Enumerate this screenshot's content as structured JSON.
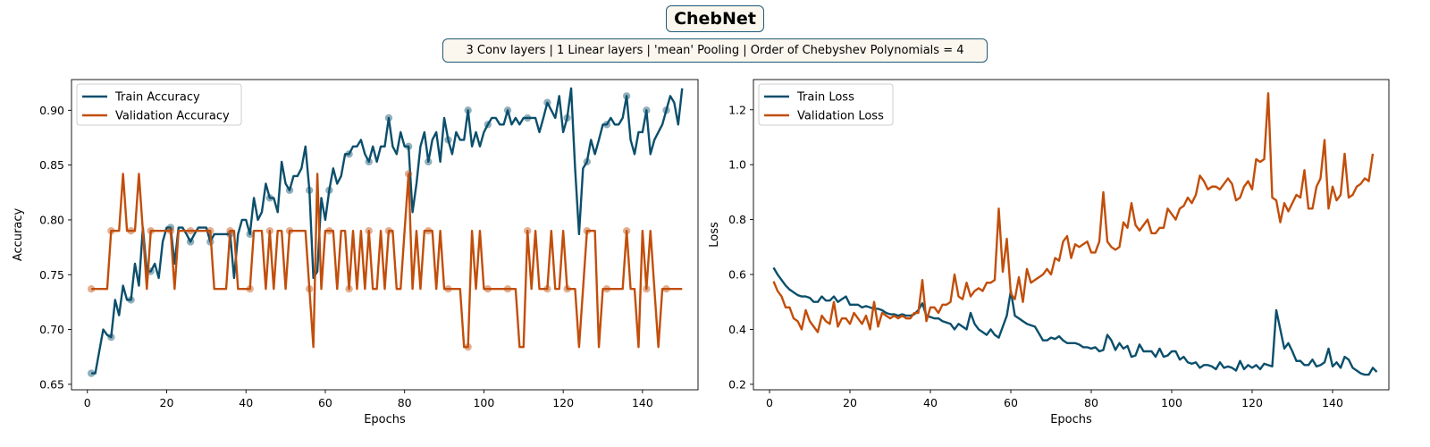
{
  "header": {
    "title": "ChebNet",
    "subtitle": "3 Conv layers | 1 Linear layers | 'mean' Pooling | Order of Chebyshev Polynomials = 4"
  },
  "colors": {
    "train": "#0b4f6c",
    "validation": "#c24e0a"
  },
  "chart_data": [
    {
      "type": "line",
      "xlabel": "Epochs",
      "ylabel": "Accuracy",
      "xlim": [
        -4,
        154
      ],
      "ylim": [
        0.645,
        0.928
      ],
      "xticks": [
        0,
        20,
        40,
        60,
        80,
        100,
        120,
        140
      ],
      "yticks": [
        0.65,
        0.7,
        0.75,
        0.8,
        0.85,
        0.9
      ],
      "ytick_labels": [
        "0.65",
        "0.70",
        "0.75",
        "0.80",
        "0.85",
        "0.90"
      ],
      "legend": "top-left",
      "x_start": 1,
      "marker_every": 5,
      "series": [
        {
          "name": "Train Accuracy",
          "color": "#0b4f6c",
          "values": [
            0.66,
            0.66,
            0.68,
            0.7,
            0.695,
            0.693,
            0.727,
            0.713,
            0.74,
            0.727,
            0.727,
            0.76,
            0.74,
            0.793,
            0.753,
            0.753,
            0.76,
            0.747,
            0.78,
            0.793,
            0.793,
            0.76,
            0.793,
            0.793,
            0.787,
            0.78,
            0.787,
            0.793,
            0.793,
            0.793,
            0.78,
            0.787,
            0.787,
            0.787,
            0.787,
            0.787,
            0.747,
            0.787,
            0.8,
            0.8,
            0.787,
            0.82,
            0.8,
            0.807,
            0.833,
            0.82,
            0.82,
            0.807,
            0.853,
            0.833,
            0.827,
            0.84,
            0.84,
            0.847,
            0.867,
            0.827,
            0.747,
            0.753,
            0.82,
            0.8,
            0.827,
            0.847,
            0.833,
            0.84,
            0.86,
            0.86,
            0.867,
            0.867,
            0.873,
            0.86,
            0.853,
            0.867,
            0.853,
            0.867,
            0.867,
            0.893,
            0.867,
            0.86,
            0.88,
            0.867,
            0.867,
            0.807,
            0.833,
            0.867,
            0.88,
            0.853,
            0.873,
            0.88,
            0.853,
            0.893,
            0.873,
            0.86,
            0.88,
            0.873,
            0.873,
            0.9,
            0.867,
            0.88,
            0.867,
            0.88,
            0.887,
            0.893,
            0.893,
            0.887,
            0.887,
            0.9,
            0.887,
            0.893,
            0.887,
            0.893,
            0.893,
            0.893,
            0.893,
            0.88,
            0.893,
            0.907,
            0.9,
            0.893,
            0.913,
            0.88,
            0.893,
            0.92,
            0.847,
            0.787,
            0.847,
            0.853,
            0.873,
            0.86,
            0.873,
            0.887,
            0.887,
            0.893,
            0.887,
            0.887,
            0.893,
            0.913,
            0.873,
            0.86,
            0.88,
            0.88,
            0.9,
            0.86,
            0.873,
            0.88,
            0.887,
            0.9,
            0.913,
            0.907,
            0.887,
            0.92
          ]
        },
        {
          "name": "Validation Accuracy",
          "color": "#c24e0a",
          "values": [
            0.737,
            0.737,
            0.737,
            0.737,
            0.737,
            0.79,
            0.79,
            0.79,
            0.842,
            0.79,
            0.79,
            0.79,
            0.842,
            0.79,
            0.737,
            0.79,
            0.79,
            0.79,
            0.79,
            0.79,
            0.79,
            0.737,
            0.79,
            0.79,
            0.79,
            0.79,
            0.79,
            0.79,
            0.79,
            0.79,
            0.79,
            0.737,
            0.737,
            0.737,
            0.737,
            0.79,
            0.79,
            0.737,
            0.737,
            0.737,
            0.737,
            0.79,
            0.79,
            0.79,
            0.737,
            0.79,
            0.737,
            0.79,
            0.79,
            0.737,
            0.79,
            0.79,
            0.79,
            0.79,
            0.79,
            0.737,
            0.684,
            0.842,
            0.737,
            0.79,
            0.79,
            0.79,
            0.737,
            0.79,
            0.79,
            0.737,
            0.79,
            0.737,
            0.79,
            0.737,
            0.79,
            0.737,
            0.737,
            0.79,
            0.737,
            0.79,
            0.79,
            0.737,
            0.737,
            0.79,
            0.842,
            0.737,
            0.79,
            0.737,
            0.79,
            0.79,
            0.79,
            0.737,
            0.79,
            0.737,
            0.737,
            0.737,
            0.737,
            0.737,
            0.684,
            0.684,
            0.79,
            0.737,
            0.79,
            0.737,
            0.737,
            0.737,
            0.737,
            0.737,
            0.737,
            0.737,
            0.737,
            0.737,
            0.684,
            0.684,
            0.79,
            0.737,
            0.79,
            0.737,
            0.737,
            0.737,
            0.79,
            0.737,
            0.737,
            0.79,
            0.737,
            0.737,
            0.737,
            0.684,
            0.737,
            0.79,
            0.79,
            0.79,
            0.684,
            0.737,
            0.737,
            0.737,
            0.737,
            0.737,
            0.737,
            0.79,
            0.737,
            0.737,
            0.684,
            0.79,
            0.737,
            0.79,
            0.737,
            0.684,
            0.737,
            0.737,
            0.737,
            0.737,
            0.737,
            0.737
          ]
        }
      ]
    },
    {
      "type": "line",
      "xlabel": "Epochs",
      "ylabel": "Loss",
      "xlim": [
        -4,
        154
      ],
      "ylim": [
        0.18,
        1.31
      ],
      "xticks": [
        0,
        20,
        40,
        60,
        80,
        100,
        120,
        140
      ],
      "yticks": [
        0.2,
        0.4,
        0.6,
        0.8,
        1.0,
        1.2
      ],
      "ytick_labels": [
        "0.2",
        "0.4",
        "0.6",
        "0.8",
        "1.0",
        "1.2"
      ],
      "legend": "top-left",
      "x_start": 1,
      "series": [
        {
          "name": "Train Loss",
          "color": "#0b4f6c",
          "values": [
            0.625,
            0.6,
            0.58,
            0.56,
            0.545,
            0.535,
            0.525,
            0.52,
            0.52,
            0.515,
            0.5,
            0.5,
            0.52,
            0.505,
            0.505,
            0.52,
            0.5,
            0.51,
            0.52,
            0.49,
            0.49,
            0.49,
            0.48,
            0.485,
            0.48,
            0.475,
            0.475,
            0.47,
            0.46,
            0.455,
            0.455,
            0.45,
            0.455,
            0.45,
            0.45,
            0.455,
            0.47,
            0.495,
            0.45,
            0.445,
            0.44,
            0.44,
            0.43,
            0.425,
            0.42,
            0.4,
            0.42,
            0.41,
            0.4,
            0.46,
            0.42,
            0.4,
            0.39,
            0.38,
            0.4,
            0.38,
            0.37,
            0.41,
            0.45,
            0.54,
            0.45,
            0.44,
            0.43,
            0.42,
            0.415,
            0.41,
            0.385,
            0.36,
            0.36,
            0.37,
            0.365,
            0.375,
            0.36,
            0.35,
            0.35,
            0.35,
            0.345,
            0.335,
            0.335,
            0.33,
            0.335,
            0.32,
            0.325,
            0.38,
            0.36,
            0.325,
            0.35,
            0.33,
            0.34,
            0.3,
            0.305,
            0.345,
            0.32,
            0.32,
            0.32,
            0.3,
            0.33,
            0.3,
            0.305,
            0.32,
            0.32,
            0.29,
            0.3,
            0.28,
            0.275,
            0.28,
            0.26,
            0.27,
            0.27,
            0.265,
            0.255,
            0.28,
            0.26,
            0.265,
            0.26,
            0.25,
            0.285,
            0.255,
            0.27,
            0.26,
            0.27,
            0.255,
            0.275,
            0.27,
            0.265,
            0.47,
            0.4,
            0.33,
            0.35,
            0.32,
            0.285,
            0.285,
            0.27,
            0.27,
            0.29,
            0.265,
            0.27,
            0.28,
            0.33,
            0.265,
            0.28,
            0.26,
            0.3,
            0.29,
            0.26,
            0.25,
            0.24,
            0.235,
            0.235,
            0.26,
            0.245
          ]
        },
        {
          "name": "Validation Loss",
          "color": "#c24e0a",
          "values": [
            0.575,
            0.54,
            0.52,
            0.48,
            0.48,
            0.44,
            0.43,
            0.4,
            0.47,
            0.43,
            0.41,
            0.39,
            0.45,
            0.43,
            0.42,
            0.5,
            0.41,
            0.44,
            0.44,
            0.42,
            0.46,
            0.44,
            0.42,
            0.45,
            0.4,
            0.5,
            0.41,
            0.46,
            0.45,
            0.44,
            0.45,
            0.44,
            0.45,
            0.44,
            0.44,
            0.46,
            0.46,
            0.58,
            0.43,
            0.48,
            0.48,
            0.46,
            0.49,
            0.49,
            0.5,
            0.6,
            0.52,
            0.51,
            0.57,
            0.52,
            0.54,
            0.55,
            0.54,
            0.57,
            0.57,
            0.58,
            0.84,
            0.61,
            0.73,
            0.53,
            0.51,
            0.59,
            0.5,
            0.62,
            0.57,
            0.58,
            0.59,
            0.6,
            0.62,
            0.6,
            0.66,
            0.65,
            0.72,
            0.74,
            0.66,
            0.71,
            0.7,
            0.71,
            0.72,
            0.68,
            0.68,
            0.72,
            0.9,
            0.72,
            0.7,
            0.69,
            0.7,
            0.79,
            0.77,
            0.86,
            0.78,
            0.76,
            0.78,
            0.8,
            0.75,
            0.75,
            0.77,
            0.77,
            0.84,
            0.82,
            0.8,
            0.84,
            0.85,
            0.88,
            0.86,
            0.89,
            0.96,
            0.94,
            0.91,
            0.92,
            0.92,
            0.91,
            0.93,
            0.95,
            0.93,
            0.87,
            0.88,
            0.92,
            0.94,
            0.91,
            1.02,
            1.01,
            1.02,
            1.26,
            0.88,
            0.87,
            0.79,
            0.86,
            0.83,
            0.86,
            0.89,
            0.88,
            0.98,
            0.84,
            0.84,
            0.92,
            0.95,
            1.09,
            0.84,
            0.92,
            0.87,
            0.89,
            1.04,
            0.88,
            0.89,
            0.92,
            0.93,
            0.95,
            0.94,
            1.04
          ]
        }
      ]
    }
  ]
}
